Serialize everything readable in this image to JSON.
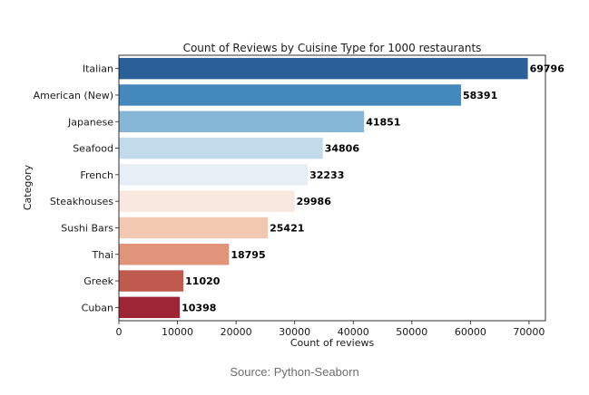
{
  "chart_data": {
    "type": "bar",
    "orientation": "horizontal",
    "title": "Count of Reviews by Cuisine Type for 1000 restaurants",
    "xlabel": "Count of reviews",
    "ylabel": "Category",
    "xlim": [
      0,
      72800
    ],
    "xticks": [
      0,
      10000,
      20000,
      30000,
      40000,
      50000,
      60000,
      70000
    ],
    "grid": false,
    "data_labels": true,
    "categories": [
      "Italian",
      "American (New)",
      "Japanese",
      "Seafood",
      "French",
      "Steakhouses",
      "Sushi Bars",
      "Thai",
      "Greek",
      "Cuban"
    ],
    "values": [
      69796,
      58391,
      41851,
      34806,
      32233,
      29986,
      25421,
      18795,
      11020,
      10398
    ],
    "colors": [
      "#2a5f9a",
      "#4489bd",
      "#86b6d6",
      "#c2dbeb",
      "#e7eef5",
      "#f8e8e0",
      "#f3c8b0",
      "#e0957b",
      "#c05a4e",
      "#9d2536"
    ]
  },
  "caption": "Source: Python-Seaborn"
}
